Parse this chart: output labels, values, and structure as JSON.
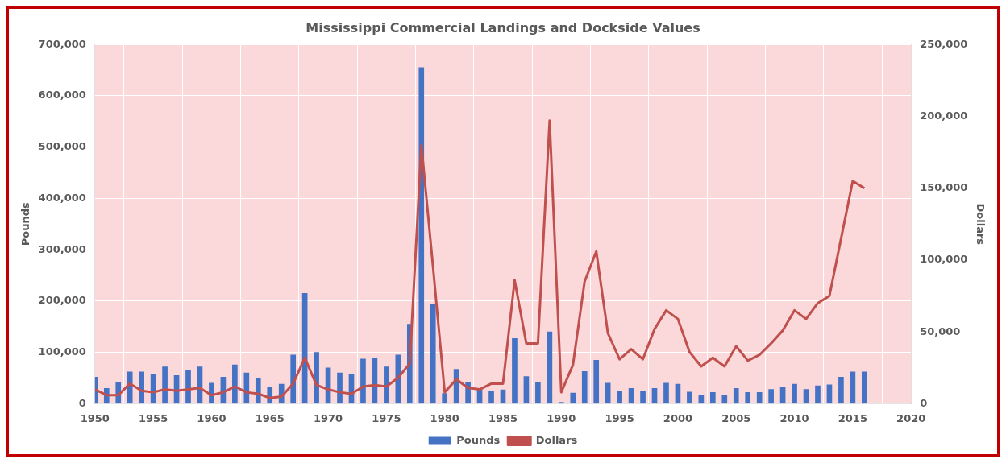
{
  "chart_data": {
    "type": "bar",
    "title": "Mississippi Commercial Landings and Dockside Values",
    "ylabel": "Pounds",
    "y2label": "Dollars",
    "x": [
      1950,
      1951,
      1952,
      1953,
      1954,
      1955,
      1956,
      1957,
      1958,
      1959,
      1960,
      1961,
      1962,
      1963,
      1964,
      1965,
      1966,
      1967,
      1968,
      1969,
      1970,
      1971,
      1972,
      1973,
      1974,
      1975,
      1976,
      1977,
      1978,
      1979,
      1980,
      1981,
      1982,
      1983,
      1984,
      1985,
      1986,
      1987,
      1988,
      1989,
      1990,
      1991,
      1992,
      1993,
      1994,
      1995,
      1996,
      1997,
      1998,
      1999,
      2000,
      2001,
      2002,
      2003,
      2004,
      2005,
      2006,
      2007,
      2008,
      2009,
      2010,
      2011,
      2012,
      2013,
      2014,
      2015,
      2016
    ],
    "series": [
      {
        "name": "Pounds",
        "color": "#4472c4",
        "values": [
          52000,
          30000,
          42000,
          62000,
          62000,
          57000,
          72000,
          55000,
          66000,
          72000,
          40000,
          52000,
          76000,
          60000,
          50000,
          33000,
          38000,
          95000,
          215000,
          100000,
          70000,
          60000,
          57000,
          87000,
          88000,
          72000,
          95000,
          155000,
          655000,
          193000,
          20000,
          67000,
          42000,
          28000,
          25000,
          27000,
          127000,
          53000,
          42000,
          140000,
          3000,
          21000,
          63000,
          85000,
          40000,
          24000,
          30000,
          25000,
          30000,
          40000,
          38000,
          23000,
          17000,
          22000,
          17000,
          30000,
          22000,
          22000,
          28000,
          32000,
          38000,
          28000,
          35000,
          37000,
          52000,
          62000,
          62000
        ]
      },
      {
        "name": "Dollars",
        "type": "line",
        "axis": "y2",
        "color": "#c0504d",
        "values": [
          10000,
          6000,
          6000,
          14000,
          9000,
          8000,
          10000,
          9000,
          10000,
          11000,
          6000,
          8000,
          12000,
          8000,
          7000,
          4000,
          5000,
          14000,
          32000,
          13000,
          10000,
          8000,
          7000,
          12000,
          13000,
          12000,
          18000,
          28000,
          180000,
          95000,
          8000,
          17000,
          11000,
          10000,
          14000,
          14000,
          86000,
          42000,
          42000,
          197000,
          8000,
          27000,
          85000,
          106000,
          49000,
          31000,
          38000,
          31000,
          52000,
          65000,
          59000,
          36000,
          26000,
          32000,
          26000,
          40000,
          30000,
          34000,
          42000,
          51000,
          65000,
          59000,
          70000,
          75000,
          115000,
          155000,
          150000
        ]
      }
    ],
    "xlim": [
      1950,
      2020
    ],
    "xticks": [
      1950,
      1955,
      1960,
      1965,
      1970,
      1975,
      1980,
      1985,
      1990,
      1995,
      2000,
      2005,
      2010,
      2015,
      2020
    ],
    "ylim": [
      0,
      700000
    ],
    "yticks": [
      0,
      {
        "value": 100000,
        "label": "100,000"
      },
      {
        "value": 200000,
        "label": "200,000"
      },
      {
        "value": 300000,
        "label": "300,000"
      },
      {
        "value": 400000,
        "label": "400,000"
      },
      {
        "value": 500000,
        "label": "500,000"
      },
      {
        "value": 600000,
        "label": "600,000"
      },
      {
        "value": 700000,
        "label": "700,000"
      }
    ],
    "y2lim": [
      0,
      250000
    ],
    "y2ticks": [
      0,
      {
        "value": 50000,
        "label": "50,000"
      },
      {
        "value": 100000,
        "label": "100,000"
      },
      {
        "value": 150000,
        "label": "150,000"
      },
      {
        "value": 200000,
        "label": "200,000"
      },
      {
        "value": 250000,
        "label": "250,000"
      }
    ],
    "grid": true,
    "legend": "bottom",
    "marker": "none",
    "line_style": "solid"
  }
}
